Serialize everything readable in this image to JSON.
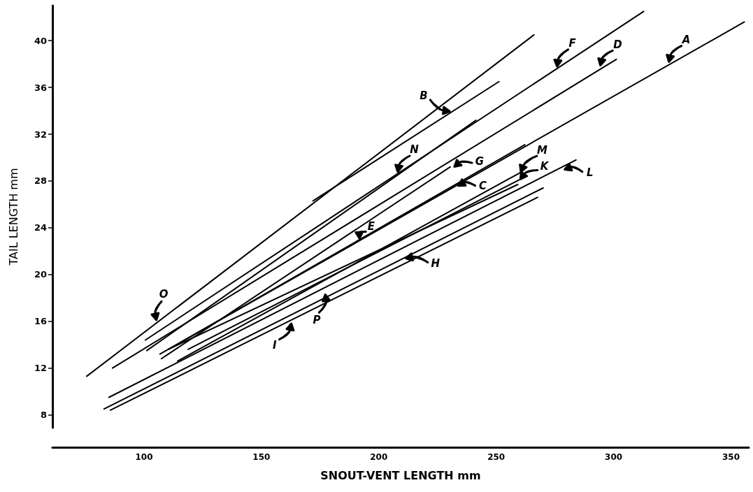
{
  "chart_data": {
    "type": "line",
    "xlabel": "SNOUT-VENT LENGTH mm",
    "ylabel": "TAIL LENGTH mm",
    "xlim": [
      61,
      357.6
    ],
    "xticks": [
      100,
      150,
      200,
      250,
      300,
      350
    ],
    "ylim": [
      6.9,
      43
    ],
    "yticks": [
      8,
      12,
      16,
      20,
      24,
      28,
      32,
      36,
      40
    ],
    "grid": false,
    "marker": "none",
    "line_style": "solid",
    "series": [
      {
        "color": "#000000",
        "x": [
          75.6,
          266.1
        ],
        "values": [
          11.3,
          40.5
        ]
      },
      {
        "color": "#000000",
        "x": [
          172.0,
          251.2
        ],
        "values": [
          26.3,
          36.5
        ]
      },
      {
        "color": "#000000",
        "x": [
          100.6,
          312.8
        ],
        "values": [
          14.4,
          42.5
        ]
      },
      {
        "color": "#000000",
        "x": [
          101.2,
          241.4
        ],
        "values": [
          13.5,
          33.2
        ]
      },
      {
        "color": "#000000",
        "x": [
          86.6,
          301.2
        ],
        "values": [
          12.0,
          38.4
        ]
      },
      {
        "color": "#000000",
        "x": [
          106.8,
          355.7
        ],
        "values": [
          13.2,
          41.6
        ]
      },
      {
        "color": "#000000",
        "x": [
          107.4,
          230.4
        ],
        "values": [
          12.8,
          29.2
        ]
      },
      {
        "color": "#000000",
        "x": [
          110.4,
          262.2
        ],
        "values": [
          13.6,
          31.1
        ]
      },
      {
        "color": "#000000",
        "x": [
          114.3,
          260.1
        ],
        "values": [
          12.6,
          28.7
        ]
      },
      {
        "color": "#000000",
        "x": [
          118.8,
          259.8
        ],
        "values": [
          13.6,
          28.1
        ]
      },
      {
        "color": "#000000",
        "x": [
          110.4,
          259.2
        ],
        "values": [
          13.6,
          27.7
        ]
      },
      {
        "color": "#000000",
        "x": [
          85.1,
          284.0
        ],
        "values": [
          9.5,
          29.8
        ]
      },
      {
        "color": "#000000",
        "x": [
          83.0,
          270.0
        ],
        "values": [
          8.5,
          27.4
        ]
      },
      {
        "color": "#000000",
        "x": [
          85.7,
          267.6
        ],
        "values": [
          8.4,
          26.6
        ]
      }
    ],
    "annotations": [
      {
        "text": "A",
        "x": 323.2,
        "y": 38.1
      },
      {
        "text": "B",
        "x": 230.7,
        "y": 33.9
      },
      {
        "text": "C",
        "x": 233.3,
        "y": 27.6
      },
      {
        "text": "D",
        "x": 294.0,
        "y": 37.8
      },
      {
        "text": "E",
        "x": 191.4,
        "y": 23.0
      },
      {
        "text": "F",
        "x": 275.6,
        "y": 37.7
      },
      {
        "text": "G",
        "x": 231.6,
        "y": 29.2
      },
      {
        "text": "H",
        "x": 211.0,
        "y": 21.4
      },
      {
        "text": "I",
        "x": 163.1,
        "y": 15.9
      },
      {
        "text": "K",
        "x": 259.8,
        "y": 28.1
      },
      {
        "text": "L",
        "x": 278.6,
        "y": 29.0
      },
      {
        "text": "M",
        "x": 260.1,
        "y": 28.7
      },
      {
        "text": "N",
        "x": 207.7,
        "y": 28.7
      },
      {
        "text": "O",
        "x": 105.1,
        "y": 16.0
      },
      {
        "text": "P",
        "x": 177.4,
        "y": 18.4
      }
    ]
  }
}
